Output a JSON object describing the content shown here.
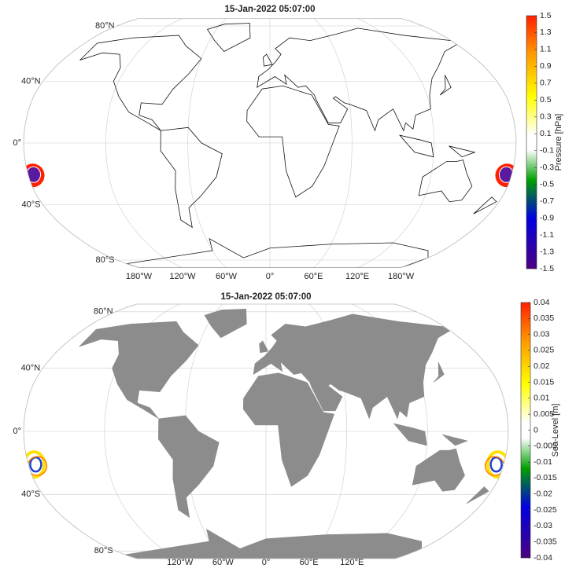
{
  "maps": [
    {
      "title": "15-Jan-2022 05:07:00",
      "lat_labels": [
        {
          "value": 80,
          "label": "80°N"
        },
        {
          "value": 40,
          "label": "40°N"
        },
        {
          "value": 0,
          "label": "0°"
        },
        {
          "value": -40,
          "label": "40°S"
        },
        {
          "value": -80,
          "label": "80°S"
        }
      ],
      "lon_labels": [
        {
          "value": -180,
          "label": "180°W"
        },
        {
          "value": -120,
          "label": "120°W"
        },
        {
          "value": -60,
          "label": "60°W"
        },
        {
          "value": 0,
          "label": "0°"
        },
        {
          "value": 60,
          "label": "60°E"
        },
        {
          "value": 120,
          "label": "120°E"
        },
        {
          "value": 180,
          "label": "180°W"
        }
      ],
      "colorbar": {
        "label": "Pressure [hPa]",
        "clim": [
          -1.5,
          1.5
        ],
        "ticks": [
          1.5,
          1.3,
          1.1,
          0.9,
          0.7,
          0.5,
          0.3,
          0.1,
          -0.1,
          -0.3,
          -0.5,
          -0.7,
          -0.9,
          -1.1,
          -1.3,
          -1.5
        ]
      }
    },
    {
      "title": "15-Jan-2022 05:07:00",
      "lat_labels": [
        {
          "value": 80,
          "label": "80°N"
        },
        {
          "value": 40,
          "label": "40°N"
        },
        {
          "value": 0,
          "label": "0°"
        },
        {
          "value": -40,
          "label": "40°S"
        },
        {
          "value": -80,
          "label": "80°S"
        }
      ],
      "lon_labels": [
        {
          "value": -120,
          "label": "120°W"
        },
        {
          "value": -60,
          "label": "60°W"
        },
        {
          "value": 0,
          "label": "0°"
        },
        {
          "value": 60,
          "label": "60°E"
        },
        {
          "value": 120,
          "label": "120°E"
        }
      ],
      "colorbar": {
        "label": "Sea-Level [m]",
        "clim": [
          -0.04,
          0.04
        ],
        "ticks": [
          0.04,
          0.035,
          0.03,
          0.025,
          0.02,
          0.015,
          0.01,
          0.005,
          0,
          -0.005,
          -0.01,
          -0.015,
          -0.02,
          -0.025,
          -0.03,
          -0.035,
          -0.04
        ]
      }
    }
  ]
}
